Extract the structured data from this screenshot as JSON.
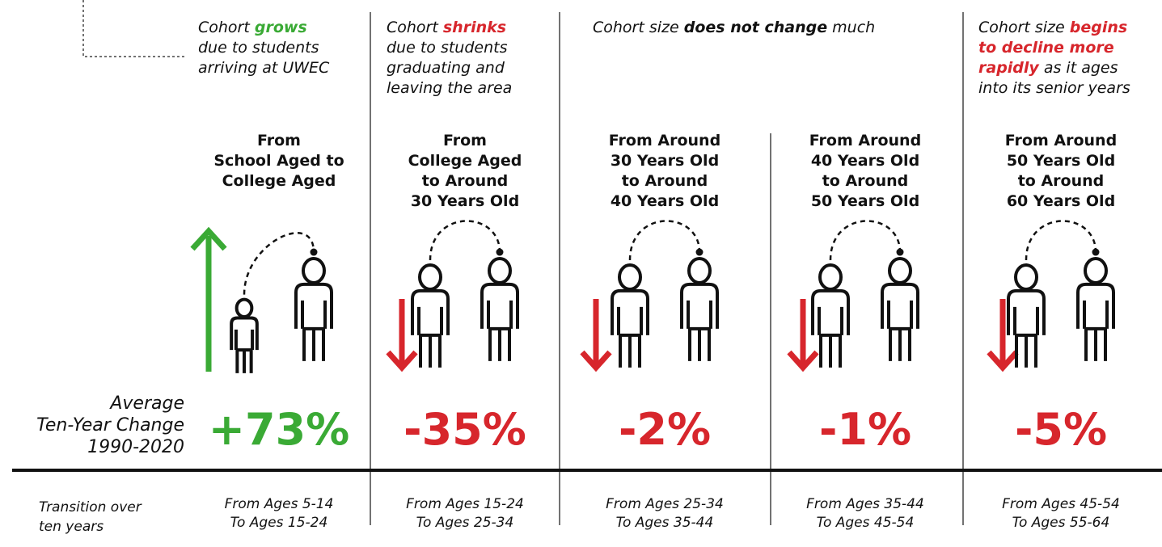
{
  "row_labels": {
    "change": [
      "Average",
      "Ten-Year Change",
      "1990-2020"
    ],
    "transition": [
      "Transition over",
      "ten years"
    ]
  },
  "descriptions": [
    {
      "lines": [
        [
          {
            "text": "Cohort "
          },
          {
            "text": "grows",
            "color": "#3aaa35"
          }
        ],
        [
          {
            "text": "due to students"
          }
        ],
        [
          {
            "text": "arriving at UWEC"
          }
        ]
      ]
    },
    {
      "lines": [
        [
          {
            "text": "Cohort "
          },
          {
            "text": "shrinks",
            "color": "#d7262c"
          }
        ],
        [
          {
            "text": "due to students"
          }
        ],
        [
          {
            "text": "graduating and"
          }
        ],
        [
          {
            "text": "leaving the area"
          }
        ]
      ]
    },
    {
      "lines": [
        [
          {
            "text": "Cohort size "
          },
          {
            "text": "does not change",
            "color": "#111111"
          },
          {
            "text": " much"
          }
        ]
      ]
    },
    {
      "lines": [
        [
          {
            "text": "Cohort size "
          },
          {
            "text": "begins",
            "color": "#d7262c"
          }
        ],
        [
          {
            "text": "to decline more",
            "color": "#d7262c"
          }
        ],
        [
          {
            "text": "rapidly",
            "color": "#d7262c"
          },
          {
            "text": " as it ages"
          }
        ],
        [
          {
            "text": "into its senior years"
          }
        ]
      ]
    }
  ],
  "columns": [
    {
      "heading": [
        "From",
        "School Aged to",
        "College Aged"
      ],
      "change": "+73%",
      "color": "#3aaa35",
      "ages": [
        "From Ages 5-14",
        "To Ages 15-24"
      ]
    },
    {
      "heading": [
        "From",
        "College Aged",
        "to Around",
        "30 Years Old"
      ],
      "change": "-35%",
      "color": "#d7262c",
      "ages": [
        "From Ages 15-24",
        "To Ages 25-34"
      ]
    },
    {
      "heading": [
        "From Around",
        "30 Years Old",
        "to Around",
        "40 Years Old"
      ],
      "change": "-2%",
      "color": "#d7262c",
      "ages": [
        "From Ages 25-34",
        "To Ages 35-44"
      ]
    },
    {
      "heading": [
        "From Around",
        "40 Years Old",
        "to Around",
        "50 Years Old"
      ],
      "change": "-1%",
      "color": "#d7262c",
      "ages": [
        "From Ages 35-44",
        "To Ages 45-54"
      ]
    },
    {
      "heading": [
        "From Around",
        "50 Years Old",
        "to Around",
        "60 Years Old"
      ],
      "change": "-5%",
      "color": "#d7262c",
      "ages": [
        "From Ages 45-54",
        "To Ages 55-64"
      ]
    }
  ]
}
